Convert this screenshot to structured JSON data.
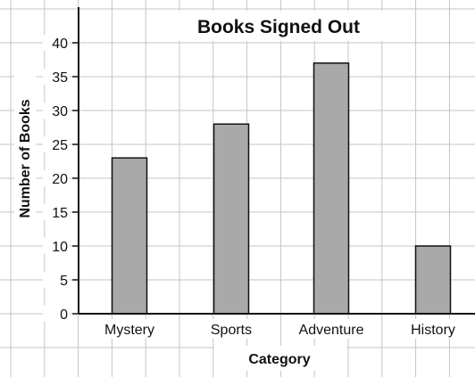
{
  "chart_data": {
    "type": "bar",
    "title": "Books Signed Out",
    "xlabel": "Category",
    "ylabel": "Number of Books",
    "categories": [
      "Mystery",
      "Sports",
      "Adventure",
      "History"
    ],
    "values": [
      23,
      28,
      37,
      10
    ],
    "ylim": [
      0,
      40
    ],
    "yticks": [
      0,
      5,
      10,
      15,
      20,
      25,
      30,
      35,
      40
    ],
    "grid": true,
    "legend": "none",
    "colors": {
      "bar_fill": "#a9a9a9",
      "bar_stroke": "#111111",
      "grid": "#c4c4c4",
      "axis": "#111111"
    }
  }
}
